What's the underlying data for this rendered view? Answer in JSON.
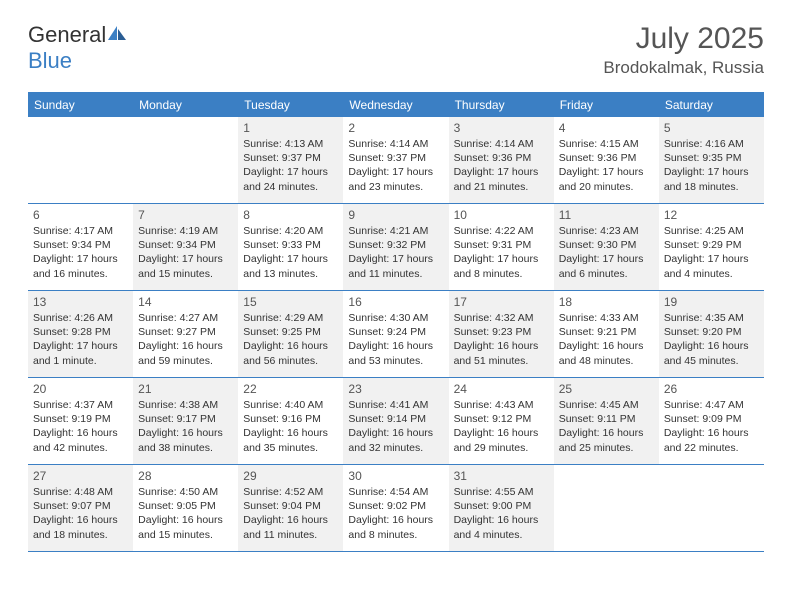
{
  "logo": {
    "text1": "General",
    "text2": "Blue"
  },
  "title": "July 2025",
  "location": "Brodokalmak, Russia",
  "colors": {
    "header_bg": "#3b7fc4",
    "header_text": "#ffffff",
    "border": "#3b7fc4",
    "shade_bg": "#f1f1f1",
    "daynum": "#555555",
    "body_text": "#333333"
  },
  "day_names": [
    "Sunday",
    "Monday",
    "Tuesday",
    "Wednesday",
    "Thursday",
    "Friday",
    "Saturday"
  ],
  "weeks": [
    [
      {
        "blank": true
      },
      {
        "blank": true
      },
      {
        "n": "1",
        "shade": true,
        "sr": "Sunrise: 4:13 AM",
        "ss": "Sunset: 9:37 PM",
        "dl": "Daylight: 17 hours and 24 minutes."
      },
      {
        "n": "2",
        "sr": "Sunrise: 4:14 AM",
        "ss": "Sunset: 9:37 PM",
        "dl": "Daylight: 17 hours and 23 minutes."
      },
      {
        "n": "3",
        "shade": true,
        "sr": "Sunrise: 4:14 AM",
        "ss": "Sunset: 9:36 PM",
        "dl": "Daylight: 17 hours and 21 minutes."
      },
      {
        "n": "4",
        "sr": "Sunrise: 4:15 AM",
        "ss": "Sunset: 9:36 PM",
        "dl": "Daylight: 17 hours and 20 minutes."
      },
      {
        "n": "5",
        "shade": true,
        "sr": "Sunrise: 4:16 AM",
        "ss": "Sunset: 9:35 PM",
        "dl": "Daylight: 17 hours and 18 minutes."
      }
    ],
    [
      {
        "n": "6",
        "sr": "Sunrise: 4:17 AM",
        "ss": "Sunset: 9:34 PM",
        "dl": "Daylight: 17 hours and 16 minutes."
      },
      {
        "n": "7",
        "shade": true,
        "sr": "Sunrise: 4:19 AM",
        "ss": "Sunset: 9:34 PM",
        "dl": "Daylight: 17 hours and 15 minutes."
      },
      {
        "n": "8",
        "sr": "Sunrise: 4:20 AM",
        "ss": "Sunset: 9:33 PM",
        "dl": "Daylight: 17 hours and 13 minutes."
      },
      {
        "n": "9",
        "shade": true,
        "sr": "Sunrise: 4:21 AM",
        "ss": "Sunset: 9:32 PM",
        "dl": "Daylight: 17 hours and 11 minutes."
      },
      {
        "n": "10",
        "sr": "Sunrise: 4:22 AM",
        "ss": "Sunset: 9:31 PM",
        "dl": "Daylight: 17 hours and 8 minutes."
      },
      {
        "n": "11",
        "shade": true,
        "sr": "Sunrise: 4:23 AM",
        "ss": "Sunset: 9:30 PM",
        "dl": "Daylight: 17 hours and 6 minutes."
      },
      {
        "n": "12",
        "sr": "Sunrise: 4:25 AM",
        "ss": "Sunset: 9:29 PM",
        "dl": "Daylight: 17 hours and 4 minutes."
      }
    ],
    [
      {
        "n": "13",
        "shade": true,
        "sr": "Sunrise: 4:26 AM",
        "ss": "Sunset: 9:28 PM",
        "dl": "Daylight: 17 hours and 1 minute."
      },
      {
        "n": "14",
        "sr": "Sunrise: 4:27 AM",
        "ss": "Sunset: 9:27 PM",
        "dl": "Daylight: 16 hours and 59 minutes."
      },
      {
        "n": "15",
        "shade": true,
        "sr": "Sunrise: 4:29 AM",
        "ss": "Sunset: 9:25 PM",
        "dl": "Daylight: 16 hours and 56 minutes."
      },
      {
        "n": "16",
        "sr": "Sunrise: 4:30 AM",
        "ss": "Sunset: 9:24 PM",
        "dl": "Daylight: 16 hours and 53 minutes."
      },
      {
        "n": "17",
        "shade": true,
        "sr": "Sunrise: 4:32 AM",
        "ss": "Sunset: 9:23 PM",
        "dl": "Daylight: 16 hours and 51 minutes."
      },
      {
        "n": "18",
        "sr": "Sunrise: 4:33 AM",
        "ss": "Sunset: 9:21 PM",
        "dl": "Daylight: 16 hours and 48 minutes."
      },
      {
        "n": "19",
        "shade": true,
        "sr": "Sunrise: 4:35 AM",
        "ss": "Sunset: 9:20 PM",
        "dl": "Daylight: 16 hours and 45 minutes."
      }
    ],
    [
      {
        "n": "20",
        "sr": "Sunrise: 4:37 AM",
        "ss": "Sunset: 9:19 PM",
        "dl": "Daylight: 16 hours and 42 minutes."
      },
      {
        "n": "21",
        "shade": true,
        "sr": "Sunrise: 4:38 AM",
        "ss": "Sunset: 9:17 PM",
        "dl": "Daylight: 16 hours and 38 minutes."
      },
      {
        "n": "22",
        "sr": "Sunrise: 4:40 AM",
        "ss": "Sunset: 9:16 PM",
        "dl": "Daylight: 16 hours and 35 minutes."
      },
      {
        "n": "23",
        "shade": true,
        "sr": "Sunrise: 4:41 AM",
        "ss": "Sunset: 9:14 PM",
        "dl": "Daylight: 16 hours and 32 minutes."
      },
      {
        "n": "24",
        "sr": "Sunrise: 4:43 AM",
        "ss": "Sunset: 9:12 PM",
        "dl": "Daylight: 16 hours and 29 minutes."
      },
      {
        "n": "25",
        "shade": true,
        "sr": "Sunrise: 4:45 AM",
        "ss": "Sunset: 9:11 PM",
        "dl": "Daylight: 16 hours and 25 minutes."
      },
      {
        "n": "26",
        "sr": "Sunrise: 4:47 AM",
        "ss": "Sunset: 9:09 PM",
        "dl": "Daylight: 16 hours and 22 minutes."
      }
    ],
    [
      {
        "n": "27",
        "shade": true,
        "sr": "Sunrise: 4:48 AM",
        "ss": "Sunset: 9:07 PM",
        "dl": "Daylight: 16 hours and 18 minutes."
      },
      {
        "n": "28",
        "sr": "Sunrise: 4:50 AM",
        "ss": "Sunset: 9:05 PM",
        "dl": "Daylight: 16 hours and 15 minutes."
      },
      {
        "n": "29",
        "shade": true,
        "sr": "Sunrise: 4:52 AM",
        "ss": "Sunset: 9:04 PM",
        "dl": "Daylight: 16 hours and 11 minutes."
      },
      {
        "n": "30",
        "sr": "Sunrise: 4:54 AM",
        "ss": "Sunset: 9:02 PM",
        "dl": "Daylight: 16 hours and 8 minutes."
      },
      {
        "n": "31",
        "shade": true,
        "sr": "Sunrise: 4:55 AM",
        "ss": "Sunset: 9:00 PM",
        "dl": "Daylight: 16 hours and 4 minutes."
      },
      {
        "blank": true
      },
      {
        "blank": true
      }
    ]
  ]
}
